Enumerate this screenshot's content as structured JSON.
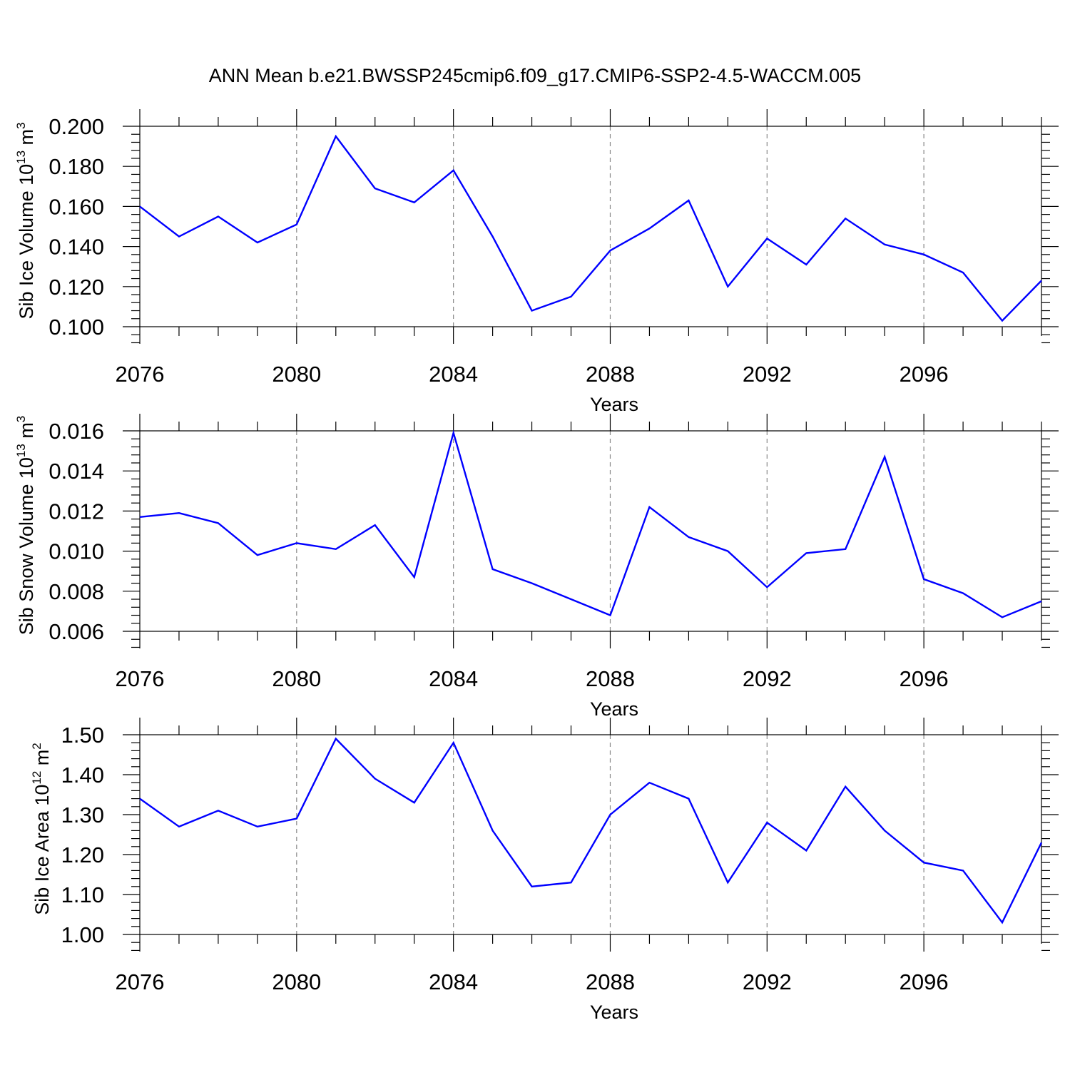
{
  "title": "ANN Mean b.e21.BWSSP245cmip6.f09_g17.CMIP6-SSP2-4.5-WACCM.005",
  "colors": {
    "series": "#0000ff",
    "axes": "#000000",
    "grid": "#888888"
  },
  "chart_data": [
    {
      "type": "line",
      "xlabel": "Years",
      "ylabel": {
        "text": "Sib Ice Volume 10",
        "exp": "13",
        "unit": " m",
        "unit_exp": "3"
      },
      "xlim": [
        2076,
        2099
      ],
      "ylim": [
        0.1,
        0.2
      ],
      "yticks": [
        "0.100",
        "0.120",
        "0.140",
        "0.160",
        "0.180",
        "0.200"
      ],
      "xticks": [
        "2076",
        "2080",
        "2084",
        "2088",
        "2092",
        "2096"
      ],
      "grid": "vertical dashed at major x ticks",
      "x": [
        2076,
        2077,
        2078,
        2079,
        2080,
        2081,
        2082,
        2083,
        2084,
        2085,
        2086,
        2087,
        2088,
        2089,
        2090,
        2091,
        2092,
        2093,
        2094,
        2095,
        2096,
        2097,
        2098,
        2099
      ],
      "values": [
        0.16,
        0.145,
        0.155,
        0.142,
        0.151,
        0.195,
        0.169,
        0.162,
        0.178,
        0.145,
        0.108,
        0.115,
        0.138,
        0.149,
        0.163,
        0.12,
        0.144,
        0.131,
        0.154,
        0.141,
        0.136,
        0.127,
        0.103,
        0.123
      ]
    },
    {
      "type": "line",
      "xlabel": "Years",
      "ylabel": {
        "text": "Sib Snow Volume 10",
        "exp": "13",
        "unit": " m",
        "unit_exp": "3"
      },
      "xlim": [
        2076,
        2099
      ],
      "ylim": [
        0.006,
        0.016
      ],
      "yticks": [
        "0.006",
        "0.008",
        "0.010",
        "0.012",
        "0.014",
        "0.016"
      ],
      "xticks": [
        "2076",
        "2080",
        "2084",
        "2088",
        "2092",
        "2096"
      ],
      "grid": "vertical dashed at major x ticks",
      "x": [
        2076,
        2077,
        2078,
        2079,
        2080,
        2081,
        2082,
        2083,
        2084,
        2085,
        2086,
        2087,
        2088,
        2089,
        2090,
        2091,
        2092,
        2093,
        2094,
        2095,
        2096,
        2097,
        2098,
        2099
      ],
      "values": [
        0.0117,
        0.0119,
        0.0114,
        0.0098,
        0.0104,
        0.0101,
        0.0113,
        0.0087,
        0.0159,
        0.0091,
        0.0084,
        0.0076,
        0.0068,
        0.0122,
        0.0107,
        0.01,
        0.0082,
        0.0099,
        0.0101,
        0.0147,
        0.0086,
        0.0079,
        0.0067,
        0.0075
      ]
    },
    {
      "type": "line",
      "xlabel": "Years",
      "ylabel": {
        "text": "Sib Ice Area 10",
        "exp": "12",
        "unit": " m",
        "unit_exp": "2"
      },
      "xlim": [
        2076,
        2099
      ],
      "ylim": [
        1.0,
        1.5
      ],
      "yticks": [
        "1.00",
        "1.10",
        "1.20",
        "1.30",
        "1.40",
        "1.50"
      ],
      "xticks": [
        "2076",
        "2080",
        "2084",
        "2088",
        "2092",
        "2096"
      ],
      "grid": "vertical dashed at major x ticks",
      "x": [
        2076,
        2077,
        2078,
        2079,
        2080,
        2081,
        2082,
        2083,
        2084,
        2085,
        2086,
        2087,
        2088,
        2089,
        2090,
        2091,
        2092,
        2093,
        2094,
        2095,
        2096,
        2097,
        2098,
        2099
      ],
      "values": [
        1.34,
        1.27,
        1.31,
        1.27,
        1.29,
        1.49,
        1.39,
        1.33,
        1.48,
        1.26,
        1.12,
        1.13,
        1.3,
        1.38,
        1.34,
        1.13,
        1.28,
        1.21,
        1.37,
        1.26,
        1.18,
        1.16,
        1.03,
        1.23
      ]
    }
  ]
}
